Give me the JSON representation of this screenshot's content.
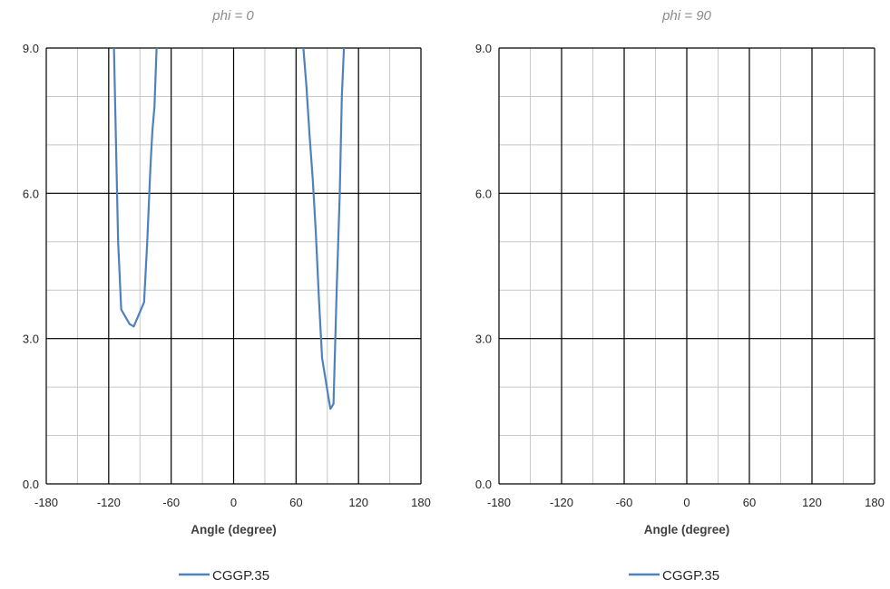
{
  "chart_data": [
    {
      "type": "line",
      "title": "phi = 0",
      "xlabel": "Angle (degree)",
      "ylabel": "",
      "xlim": [
        -180,
        180
      ],
      "ylim": [
        0,
        9
      ],
      "xticks": [
        "-180",
        "-120",
        "-60",
        "0",
        "60",
        "120",
        "180"
      ],
      "yticks": [
        "0.0",
        "3.0",
        "6.0",
        "9.0"
      ],
      "grid": true,
      "legend": "bottom",
      "series": [
        {
          "name": "CGGP.35",
          "color": "#4f81bd",
          "segments": [
            [
              [
                -115,
                9.0
              ],
              [
                -113,
                7.0
              ],
              [
                -111,
                5.0
              ],
              [
                -108,
                3.6
              ],
              [
                -104,
                3.45
              ],
              [
                -100,
                3.3
              ],
              [
                -96,
                3.25
              ],
              [
                -92,
                3.45
              ],
              [
                -86,
                3.75
              ],
              [
                -83,
                5.0
              ],
              [
                -80,
                6.5
              ],
              [
                -78,
                7.3
              ],
              [
                -76,
                7.8
              ],
              [
                -74,
                9.0
              ]
            ],
            [
              [
                67,
                9.0
              ],
              [
                70,
                8.2
              ],
              [
                73,
                7.2
              ],
              [
                76,
                6.3
              ],
              [
                79,
                5.2
              ],
              [
                82,
                3.8
              ],
              [
                85,
                2.6
              ],
              [
                88,
                2.2
              ],
              [
                91,
                1.8
              ],
              [
                93,
                1.55
              ],
              [
                96,
                1.65
              ],
              [
                99,
                4.0
              ],
              [
                102,
                6.0
              ],
              [
                104,
                8.0
              ],
              [
                106,
                9.0
              ]
            ]
          ]
        }
      ]
    },
    {
      "type": "line",
      "title": "phi = 90",
      "xlabel": "Angle (degree)",
      "ylabel": "",
      "xlim": [
        -180,
        180
      ],
      "ylim": [
        0,
        9
      ],
      "xticks": [
        "-180",
        "-120",
        "-60",
        "0",
        "60",
        "120",
        "180"
      ],
      "yticks": [
        "0.0",
        "3.0",
        "6.0",
        "9.0"
      ],
      "grid": true,
      "legend": "bottom",
      "series": [
        {
          "name": "CGGP.35",
          "color": "#4f81bd",
          "segments": []
        }
      ]
    }
  ]
}
